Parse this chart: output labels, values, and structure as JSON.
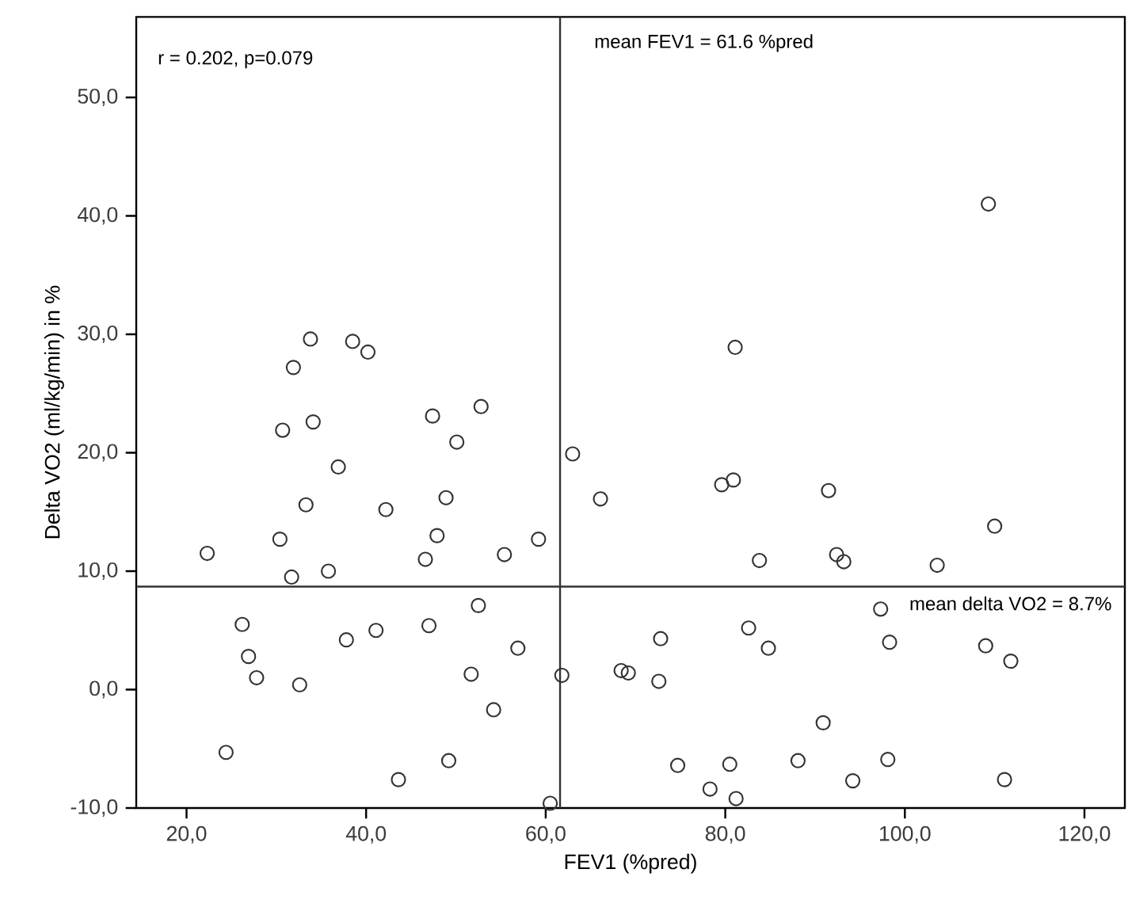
{
  "chart_data": {
    "type": "scatter",
    "xlabel": "FEV1 (%pred)",
    "ylabel": "Delta VO2 (ml/kg/min) in %",
    "xlim": [
      14.4,
      124.5
    ],
    "ylim": [
      -10,
      56.8
    ],
    "xticks": [
      {
        "value": 20,
        "label": "20,0"
      },
      {
        "value": 40,
        "label": "40,0"
      },
      {
        "value": 60,
        "label": "60,0"
      },
      {
        "value": 80,
        "label": "80,0"
      },
      {
        "value": 100,
        "label": "100,0"
      },
      {
        "value": 120,
        "label": "120,0"
      }
    ],
    "yticks": [
      {
        "value": -10,
        "label": "-10,0"
      },
      {
        "value": 0,
        "label": "0,0"
      },
      {
        "value": 10,
        "label": "10,0"
      },
      {
        "value": 20,
        "label": "20,0"
      },
      {
        "value": 30,
        "label": "30,0"
      },
      {
        "value": 40,
        "label": "40,0"
      },
      {
        "value": 50,
        "label": "50,0"
      }
    ],
    "marker": "circle",
    "grid": false,
    "annotations": [
      "r = 0.202, p=0.079"
    ],
    "ref_lines": [
      {
        "axis": "x",
        "value": 61.6,
        "label": "mean FEV1 = 61.6 %pred",
        "color": "#333333"
      },
      {
        "axis": "y",
        "value": 8.7,
        "label": "mean delta VO2 = 8.7%",
        "color": "#333333"
      }
    ],
    "series": [
      {
        "color": "#333333",
        "x": [
          33.8,
          31.9,
          38.5,
          40.2,
          30.7,
          34.1,
          47.4,
          52.8,
          50.1,
          109.3,
          81.1,
          63.0,
          22.3,
          36.9,
          33.3,
          30.4,
          31.7,
          35.8,
          42.2,
          48.9,
          47.9,
          46.6,
          55.4,
          59.2,
          26.2,
          26.9,
          27.8,
          32.6,
          37.8,
          41.1,
          47.0,
          52.5,
          56.9,
          51.7,
          54.2,
          61.8,
          24.4,
          49.2,
          43.6,
          60.5,
          66.1,
          79.6,
          80.9,
          91.5,
          110.0,
          83.8,
          92.4,
          93.2,
          103.6,
          97.3,
          82.6,
          72.8,
          84.8,
          98.3,
          109.0,
          111.8,
          68.4,
          69.2,
          72.6,
          90.9,
          74.7,
          80.5,
          88.1,
          98.1,
          78.3,
          81.2,
          94.2,
          111.1
        ],
        "values": [
          29.6,
          27.2,
          29.4,
          28.5,
          21.9,
          22.6,
          23.1,
          23.9,
          20.9,
          41.0,
          28.9,
          19.9,
          11.5,
          18.8,
          15.6,
          12.7,
          9.5,
          10.0,
          15.2,
          16.2,
          13.0,
          11.0,
          11.4,
          12.7,
          5.5,
          2.8,
          1.0,
          0.4,
          4.2,
          5.0,
          5.4,
          7.1,
          3.5,
          1.3,
          -1.7,
          1.2,
          -5.3,
          -6.0,
          -7.6,
          -9.6,
          16.1,
          17.3,
          17.7,
          16.8,
          13.8,
          10.9,
          11.4,
          10.8,
          10.5,
          6.8,
          5.2,
          4.3,
          3.5,
          4.0,
          3.7,
          2.4,
          1.6,
          1.4,
          0.7,
          -2.8,
          -6.4,
          -6.3,
          -6.0,
          -5.9,
          -8.4,
          -9.2,
          -7.7,
          -7.6
        ]
      }
    ]
  }
}
